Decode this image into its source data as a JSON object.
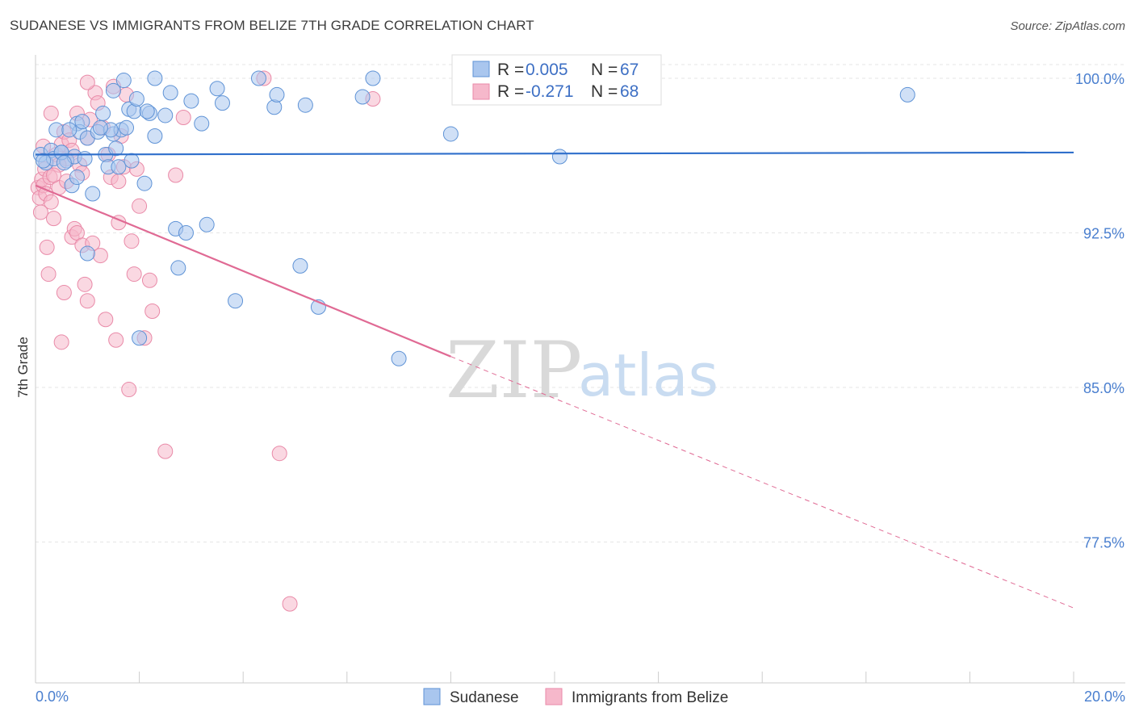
{
  "header": {
    "title": "SUDANESE VS IMMIGRANTS FROM BELIZE 7TH GRADE CORRELATION CHART",
    "source": "Source: ZipAtlas.com"
  },
  "watermark": {
    "part1": "ZIP",
    "part2": "atlas"
  },
  "legend": {
    "series1": {
      "r_label": "R =",
      "r_value": "0.005",
      "n_label": "N =",
      "n_value": "67"
    },
    "series2": {
      "r_label": "R =",
      "r_value": "-0.271",
      "n_label": "N =",
      "n_value": "68"
    }
  },
  "colors": {
    "sudanese_fill": "#a9c6ee",
    "sudanese_stroke": "#5f93d6",
    "sudanese_line": "#2f6fcb",
    "belize_fill": "#f6b8cb",
    "belize_stroke": "#e98aa8",
    "belize_line": "#e06a94",
    "tick_text": "#4a7fcf",
    "grid": "#e6e6e6"
  },
  "chart_data": {
    "type": "scatter",
    "title": "SUDANESE VS IMMIGRANTS FROM BELIZE 7TH GRADE CORRELATION CHART",
    "xlabel": "",
    "ylabel": "7th Grade",
    "xlim": [
      0,
      20
    ],
    "ylim": [
      70.5,
      101.2
    ],
    "x_tick_labels": [
      "0.0%",
      "20.0%"
    ],
    "y_ticks": [
      {
        "value": 100.0,
        "label": "100.0%"
      },
      {
        "value": 92.5,
        "label": "92.5%"
      },
      {
        "value": 85.0,
        "label": "85.0%"
      },
      {
        "value": 77.5,
        "label": "77.5%"
      }
    ],
    "series": [
      {
        "name": "Sudanese",
        "r": 0.005,
        "n": 67,
        "trend": {
          "x_start": 0,
          "y_start": 96.3,
          "x_end": 20,
          "y_end": 96.4
        },
        "points": [
          [
            0.1,
            96.3
          ],
          [
            0.2,
            95.9
          ],
          [
            0.3,
            96.5
          ],
          [
            0.35,
            96.1
          ],
          [
            0.4,
            97.5
          ],
          [
            0.5,
            96.4
          ],
          [
            0.6,
            96.0
          ],
          [
            0.7,
            94.8
          ],
          [
            0.75,
            96.2
          ],
          [
            0.8,
            95.2
          ],
          [
            0.8,
            97.8
          ],
          [
            0.85,
            97.4
          ],
          [
            0.9,
            97.9
          ],
          [
            1.0,
            91.5
          ],
          [
            1.0,
            97.1
          ],
          [
            1.1,
            94.4
          ],
          [
            1.2,
            97.4
          ],
          [
            1.3,
            98.3
          ],
          [
            1.35,
            96.3
          ],
          [
            1.4,
            95.7
          ],
          [
            1.5,
            97.3
          ],
          [
            1.5,
            99.4
          ],
          [
            1.55,
            96.6
          ],
          [
            1.6,
            95.7
          ],
          [
            1.65,
            97.5
          ],
          [
            1.7,
            99.9
          ],
          [
            1.75,
            97.6
          ],
          [
            1.8,
            98.5
          ],
          [
            1.85,
            96.0
          ],
          [
            1.9,
            98.4
          ],
          [
            1.95,
            99.0
          ],
          [
            2.0,
            87.4
          ],
          [
            2.1,
            94.9
          ],
          [
            2.2,
            98.3
          ],
          [
            2.3,
            100.0
          ],
          [
            2.3,
            97.2
          ],
          [
            2.5,
            98.2
          ],
          [
            2.6,
            99.3
          ],
          [
            2.7,
            92.7
          ],
          [
            2.75,
            90.8
          ],
          [
            2.9,
            92.5
          ],
          [
            3.0,
            98.9
          ],
          [
            3.2,
            97.8
          ],
          [
            3.3,
            92.9
          ],
          [
            3.5,
            99.5
          ],
          [
            3.6,
            98.8
          ],
          [
            3.85,
            89.2
          ],
          [
            4.3,
            100.0
          ],
          [
            4.6,
            98.6
          ],
          [
            4.65,
            99.2
          ],
          [
            5.1,
            90.9
          ],
          [
            5.2,
            98.7
          ],
          [
            5.45,
            88.9
          ],
          [
            6.3,
            99.1
          ],
          [
            6.5,
            100.0
          ],
          [
            7.0,
            86.4
          ],
          [
            8.0,
            97.3
          ],
          [
            10.1,
            96.2
          ],
          [
            16.8,
            99.2
          ],
          [
            0.5,
            96.4
          ],
          [
            0.95,
            96.1
          ],
          [
            1.45,
            97.5
          ],
          [
            0.15,
            96.0
          ],
          [
            2.15,
            98.4
          ],
          [
            0.65,
            97.5
          ],
          [
            1.25,
            97.6
          ],
          [
            0.55,
            95.9
          ]
        ]
      },
      {
        "name": "Immigrants from Belize",
        "r": -0.271,
        "n": 68,
        "trend": {
          "x_start": 0,
          "y_start": 94.8,
          "x_end": 8.0,
          "y_end": 86.5
        },
        "trend_dashed": {
          "x_start": 8.0,
          "y_start": 86.5,
          "x_end": 20,
          "y_end": 74.3
        },
        "points": [
          [
            0.05,
            94.7
          ],
          [
            0.08,
            94.2
          ],
          [
            0.1,
            93.5
          ],
          [
            0.12,
            95.1
          ],
          [
            0.15,
            94.8
          ],
          [
            0.18,
            95.6
          ],
          [
            0.2,
            94.4
          ],
          [
            0.22,
            91.8
          ],
          [
            0.25,
            90.5
          ],
          [
            0.28,
            95.2
          ],
          [
            0.3,
            94.0
          ],
          [
            0.35,
            93.2
          ],
          [
            0.4,
            96.3
          ],
          [
            0.45,
            94.7
          ],
          [
            0.5,
            87.2
          ],
          [
            0.5,
            96.8
          ],
          [
            0.55,
            97.4
          ],
          [
            0.55,
            89.6
          ],
          [
            0.6,
            96.1
          ],
          [
            0.65,
            97.0
          ],
          [
            0.7,
            92.3
          ],
          [
            0.7,
            96.5
          ],
          [
            0.75,
            92.7
          ],
          [
            0.8,
            98.3
          ],
          [
            0.8,
            92.5
          ],
          [
            0.85,
            95.8
          ],
          [
            0.9,
            95.4
          ],
          [
            0.9,
            91.9
          ],
          [
            0.95,
            90.0
          ],
          [
            1.0,
            89.2
          ],
          [
            1.0,
            97.1
          ],
          [
            1.05,
            98.0
          ],
          [
            1.1,
            92.0
          ],
          [
            1.15,
            99.3
          ],
          [
            1.2,
            98.8
          ],
          [
            1.25,
            91.4
          ],
          [
            1.3,
            97.6
          ],
          [
            1.35,
            88.3
          ],
          [
            1.4,
            96.3
          ],
          [
            1.45,
            95.2
          ],
          [
            1.5,
            99.6
          ],
          [
            1.55,
            87.3
          ],
          [
            1.6,
            95.0
          ],
          [
            1.6,
            93.0
          ],
          [
            1.65,
            97.2
          ],
          [
            1.7,
            95.7
          ],
          [
            1.75,
            99.2
          ],
          [
            1.8,
            84.9
          ],
          [
            1.85,
            92.1
          ],
          [
            1.9,
            90.5
          ],
          [
            1.95,
            95.6
          ],
          [
            2.0,
            93.8
          ],
          [
            2.1,
            87.4
          ],
          [
            2.2,
            90.2
          ],
          [
            2.25,
            88.7
          ],
          [
            2.5,
            81.9
          ],
          [
            2.7,
            95.3
          ],
          [
            2.85,
            98.1
          ],
          [
            4.4,
            100.0
          ],
          [
            4.7,
            81.8
          ],
          [
            4.9,
            74.5
          ],
          [
            6.5,
            99.0
          ],
          [
            0.3,
            98.3
          ],
          [
            0.6,
            95.0
          ],
          [
            0.45,
            95.8
          ],
          [
            0.15,
            96.7
          ],
          [
            1.0,
            99.8
          ],
          [
            0.35,
            95.3
          ]
        ]
      }
    ]
  },
  "bottom_legend": {
    "item1": "Sudanese",
    "item2": "Immigrants from Belize"
  }
}
